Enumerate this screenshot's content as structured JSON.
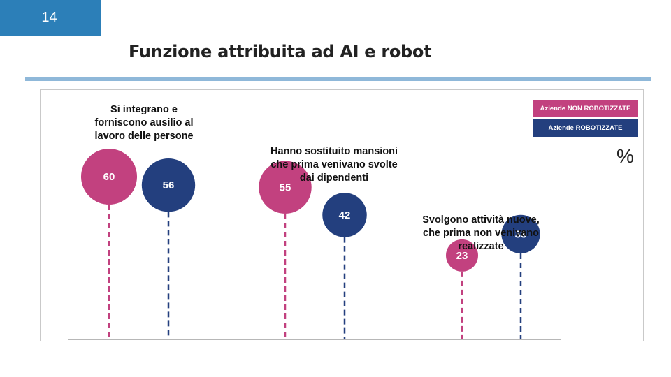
{
  "page_number": "14",
  "title": "Funzione attribuita ad AI e robot",
  "unit_symbol": "%",
  "colors": {
    "non_robot": "#c2417f",
    "robot": "#233f7e",
    "header": "#2c7fb8",
    "rule": "#8fb8d9"
  },
  "legend": [
    {
      "label": "Aziende NON ROBOTIZZATE",
      "color": "#c2417f"
    },
    {
      "label": "Aziende  ROBOTIZZATE",
      "color": "#233f7e"
    }
  ],
  "chart_data": {
    "type": "lollipop",
    "categories": [
      "Si integrano e forniscono ausilio al lavoro delle persone",
      "Hanno sostituito mansioni che prima venivano svolte dai dipendenti",
      "Svolgono attività nuove, che prima non venivano realizzate"
    ],
    "series": [
      {
        "name": "Aziende NON ROBOTIZZATE",
        "values": [
          60,
          55,
          23
        ]
      },
      {
        "name": "Aziende  ROBOTIZZATE",
        "values": [
          56,
          42,
          33
        ]
      }
    ],
    "label_lines": [
      [
        "Si integrano e",
        "forniscono ausilio al",
        "lavoro delle persone"
      ],
      [
        "Hanno sostituito mansioni",
        "che prima venivano svolte",
        "dai dipendenti"
      ],
      [
        "Svolgono attività nuove,",
        "che prima non venivano",
        "realizzate"
      ]
    ],
    "ylabel": "%",
    "grid": false,
    "legend_position": "top-right"
  }
}
